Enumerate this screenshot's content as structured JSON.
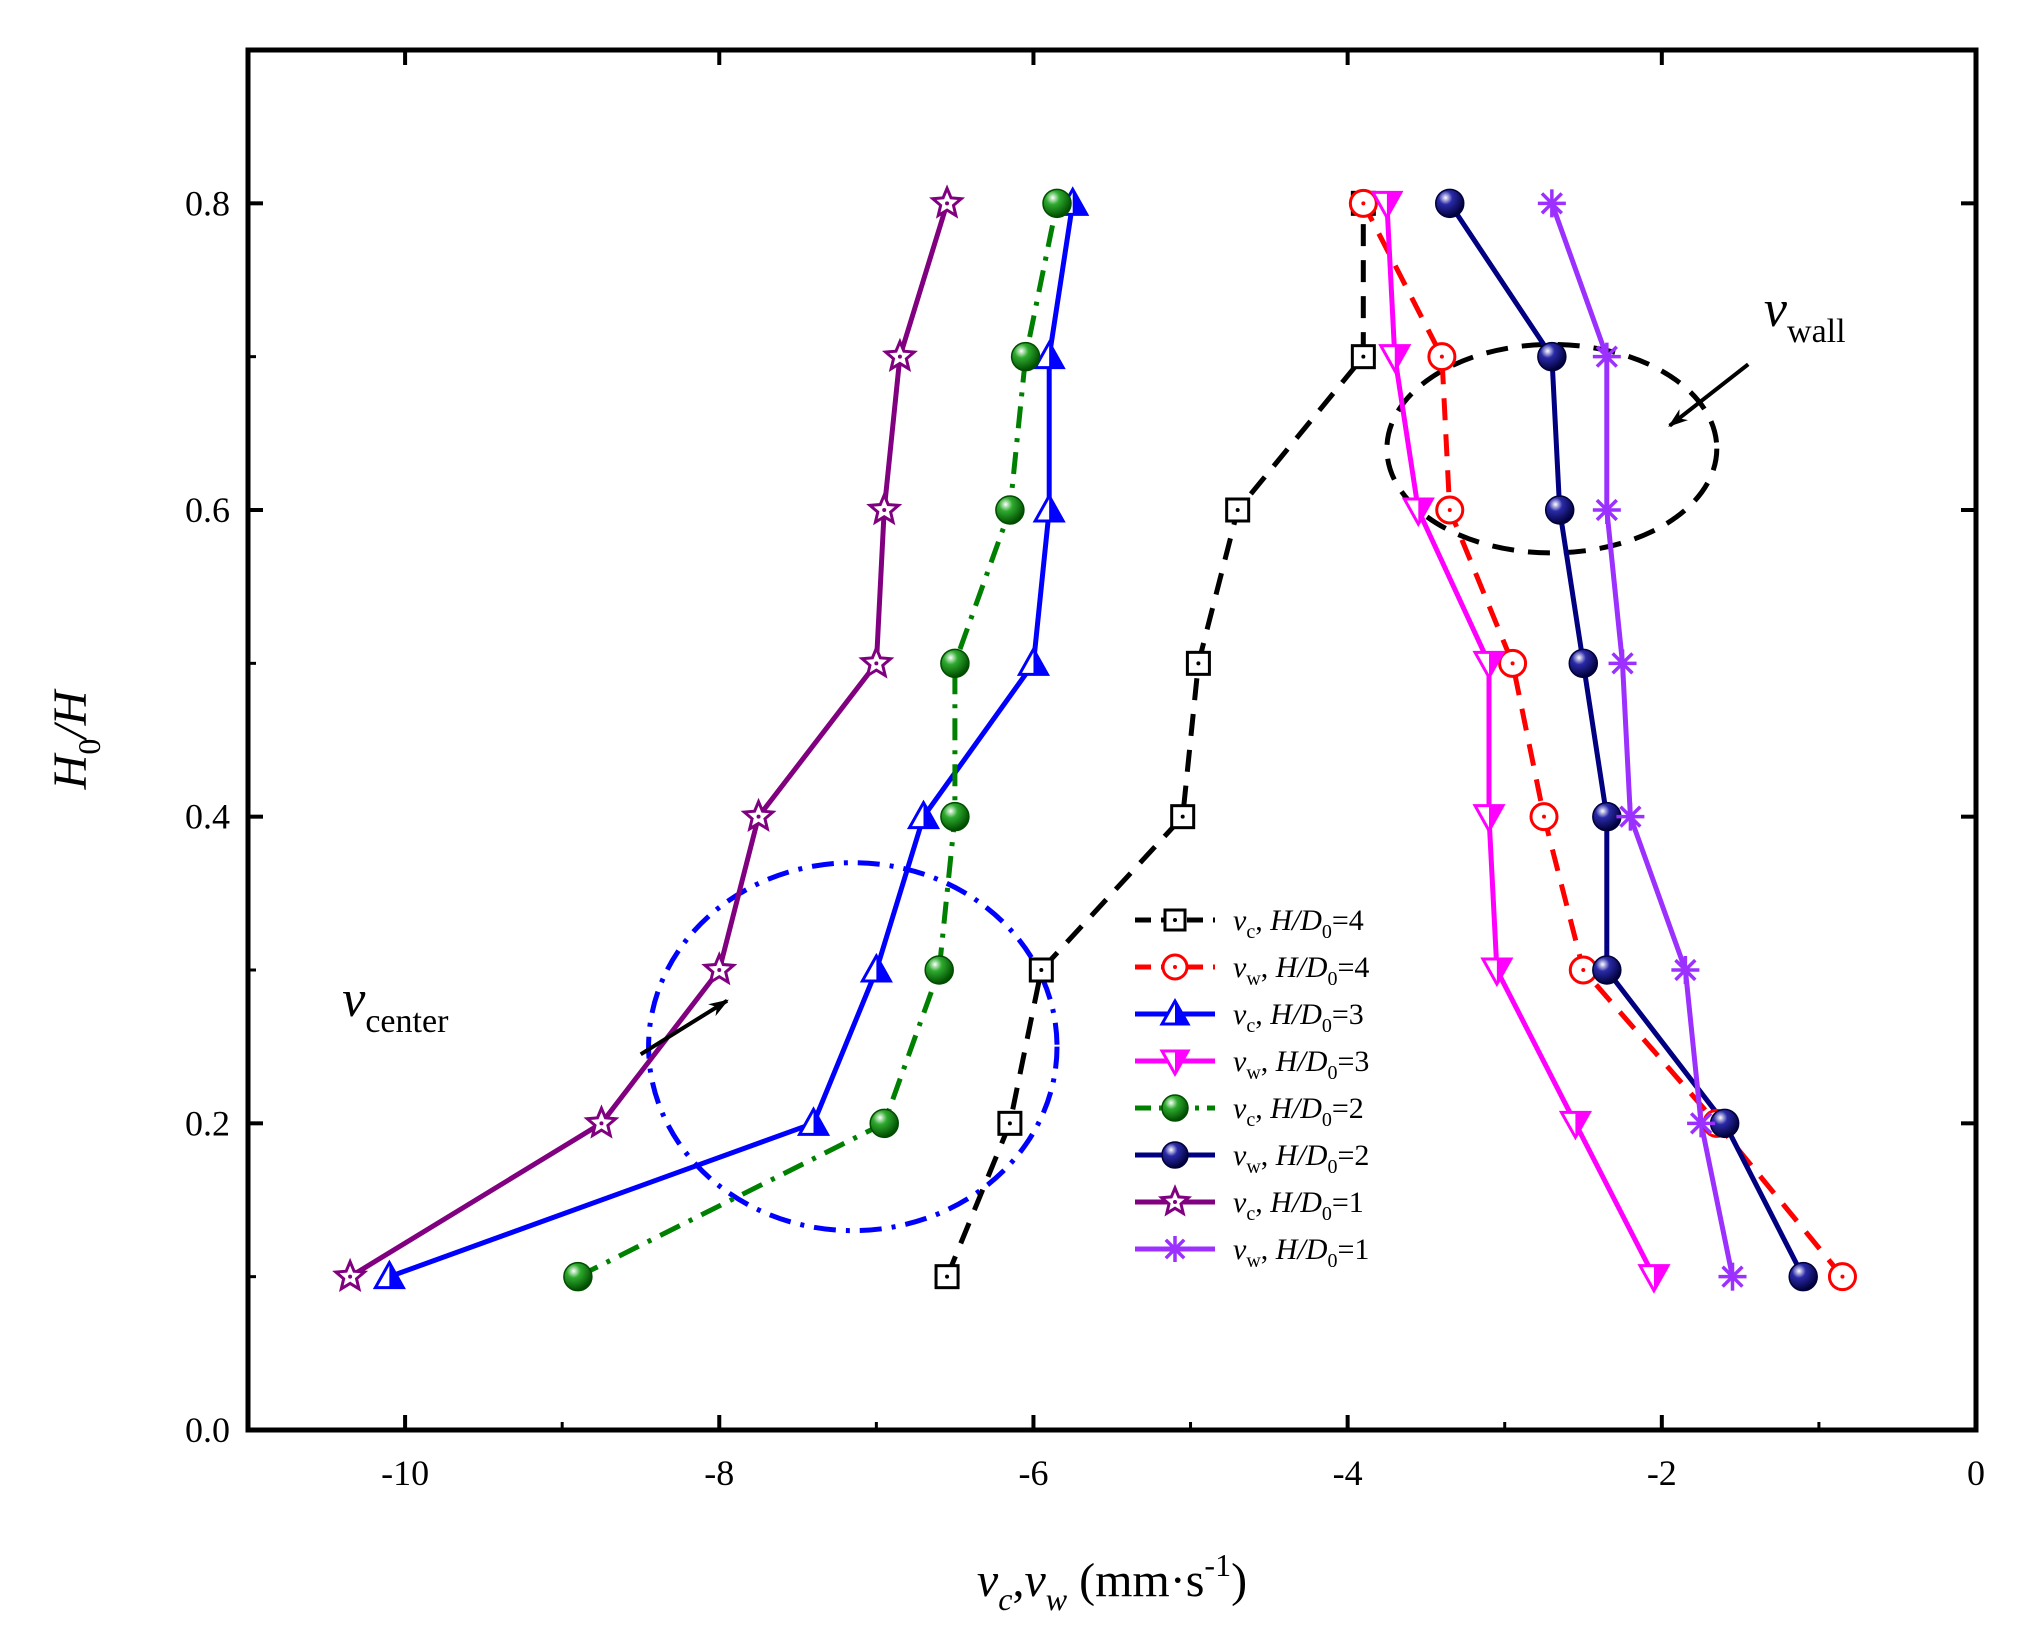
{
  "chart_data": {
    "type": "line",
    "title": "",
    "xlabel": {
      "main_1": "v",
      "sub_1": "c",
      "sep": ",",
      "main_2": "v",
      "sub_2": "w",
      "unit": " (mm·s",
      "sup": "-1",
      "close": ")"
    },
    "ylabel": {
      "main_1": "H",
      "sub_1": "0",
      "main_2": "/H"
    },
    "xlim": [
      -11,
      0
    ],
    "ylim": [
      0,
      0.9
    ],
    "x_ticks": [
      -10,
      -8,
      -6,
      -4,
      -2,
      0
    ],
    "x_tick_labels": [
      "-10",
      "-8",
      "-6",
      "-4",
      "-2",
      "0"
    ],
    "y_ticks": [
      0.0,
      0.2,
      0.4,
      0.6,
      0.8
    ],
    "y_tick_labels": [
      "0.0",
      "0.2",
      "0.4",
      "0.6",
      "0.8"
    ],
    "legend_position": "lower-right",
    "series": [
      {
        "name": "v_c, H/D_0=4",
        "var": "v",
        "var_sub": "c",
        "ratio": "H/D",
        "ratio_sub": "0",
        "value": "=4",
        "color": "#000000",
        "dash": "dash",
        "marker": "square-open",
        "x": [
          -6.55,
          -6.15,
          -5.95,
          -5.05,
          -4.95,
          -4.7,
          -3.9,
          -3.9
        ],
        "y": [
          0.1,
          0.2,
          0.3,
          0.4,
          0.5,
          0.6,
          0.7,
          0.8
        ]
      },
      {
        "name": "v_w, H/D_0=4",
        "var": "v",
        "var_sub": "w",
        "ratio": "H/D",
        "ratio_sub": "0",
        "value": "=4",
        "color": "#ff0000",
        "dash": "dash",
        "marker": "circle-open",
        "x": [
          -0.85,
          -1.65,
          -2.5,
          -2.75,
          -2.95,
          -3.35,
          -3.4,
          -3.9
        ],
        "y": [
          0.1,
          0.2,
          0.3,
          0.4,
          0.5,
          0.6,
          0.7,
          0.8
        ]
      },
      {
        "name": "v_c, H/D_0=3",
        "var": "v",
        "var_sub": "c",
        "ratio": "H/D",
        "ratio_sub": "0",
        "value": "=3",
        "color": "#0000ff",
        "dash": "solid",
        "marker": "triangle-up-half",
        "x": [
          -10.1,
          -7.4,
          -7.0,
          -6.7,
          -6.0,
          -5.9,
          -5.9,
          -5.75
        ],
        "y": [
          0.1,
          0.2,
          0.3,
          0.4,
          0.5,
          0.6,
          0.7,
          0.8
        ]
      },
      {
        "name": "v_w, H/D_0=3",
        "var": "v",
        "var_sub": "w",
        "ratio": "H/D",
        "ratio_sub": "0",
        "value": "=3",
        "color": "#ff00ff",
        "dash": "solid",
        "marker": "triangle-down-half",
        "x": [
          -2.05,
          -2.55,
          -3.05,
          -3.1,
          -3.1,
          -3.55,
          -3.7,
          -3.75
        ],
        "y": [
          0.1,
          0.2,
          0.3,
          0.4,
          0.5,
          0.6,
          0.7,
          0.8
        ]
      },
      {
        "name": "v_c, H/D_0=2",
        "var": "v",
        "var_sub": "c",
        "ratio": "H/D",
        "ratio_sub": "0",
        "value": "=2",
        "color": "#008000",
        "dash": "dashdot",
        "marker": "ball",
        "x": [
          -8.9,
          -6.95,
          -6.6,
          -6.5,
          -6.5,
          -6.15,
          -6.05,
          -5.85
        ],
        "y": [
          0.1,
          0.2,
          0.3,
          0.4,
          0.5,
          0.6,
          0.7,
          0.8
        ]
      },
      {
        "name": "v_w, H/D_0=2",
        "var": "v",
        "var_sub": "w",
        "ratio": "H/D",
        "ratio_sub": "0",
        "value": "=2",
        "color": "#000080",
        "dash": "solid",
        "marker": "ball",
        "x": [
          -1.1,
          -1.6,
          -2.35,
          -2.35,
          -2.5,
          -2.65,
          -2.7,
          -3.35
        ],
        "y": [
          0.1,
          0.2,
          0.3,
          0.4,
          0.5,
          0.6,
          0.7,
          0.8
        ]
      },
      {
        "name": "v_c, H/D_0=1",
        "var": "v",
        "var_sub": "c",
        "ratio": "H/D",
        "ratio_sub": "0",
        "value": "=1",
        "color": "#800080",
        "dash": "solid",
        "marker": "star-open",
        "x": [
          -10.35,
          -8.75,
          -8.0,
          -7.75,
          -7.0,
          -6.95,
          -6.85,
          -6.55
        ],
        "y": [
          0.1,
          0.2,
          0.3,
          0.4,
          0.5,
          0.6,
          0.7,
          0.8
        ]
      },
      {
        "name": "v_w, H/D_0=1",
        "var": "v",
        "var_sub": "w",
        "ratio": "H/D",
        "ratio_sub": "0",
        "value": "=1",
        "color": "#9b30ff",
        "dash": "solid",
        "marker": "asterisk",
        "x": [
          -1.55,
          -1.75,
          -1.85,
          -2.2,
          -2.25,
          -2.35,
          -2.35,
          -2.7
        ],
        "y": [
          0.1,
          0.2,
          0.3,
          0.4,
          0.5,
          0.6,
          0.7,
          0.8
        ]
      }
    ],
    "annotations": [
      {
        "name": "v-center",
        "main": "v",
        "sub": "center",
        "label_at": [
          -10.4,
          0.27
        ],
        "arrow_from": [
          -8.5,
          0.245
        ],
        "arrow_to": [
          -7.95,
          0.28
        ]
      },
      {
        "name": "v-wall",
        "main": "v",
        "sub": "wall",
        "label_at": [
          -1.35,
          0.72
        ],
        "arrow_from": [
          -1.45,
          0.695
        ],
        "arrow_to": [
          -1.95,
          0.655
        ]
      }
    ],
    "ellipses": [
      {
        "name": "center-ellipse",
        "color": "#0000ff",
        "dash": "dashdot",
        "cx": -7.15,
        "cy": 0.25,
        "rx": 1.3,
        "ry": 0.12
      },
      {
        "name": "wall-ellipse",
        "color": "#000000",
        "dash": "dash",
        "cx": -2.7,
        "cy": 0.64,
        "rx": 1.05,
        "ry": 0.068
      }
    ]
  }
}
